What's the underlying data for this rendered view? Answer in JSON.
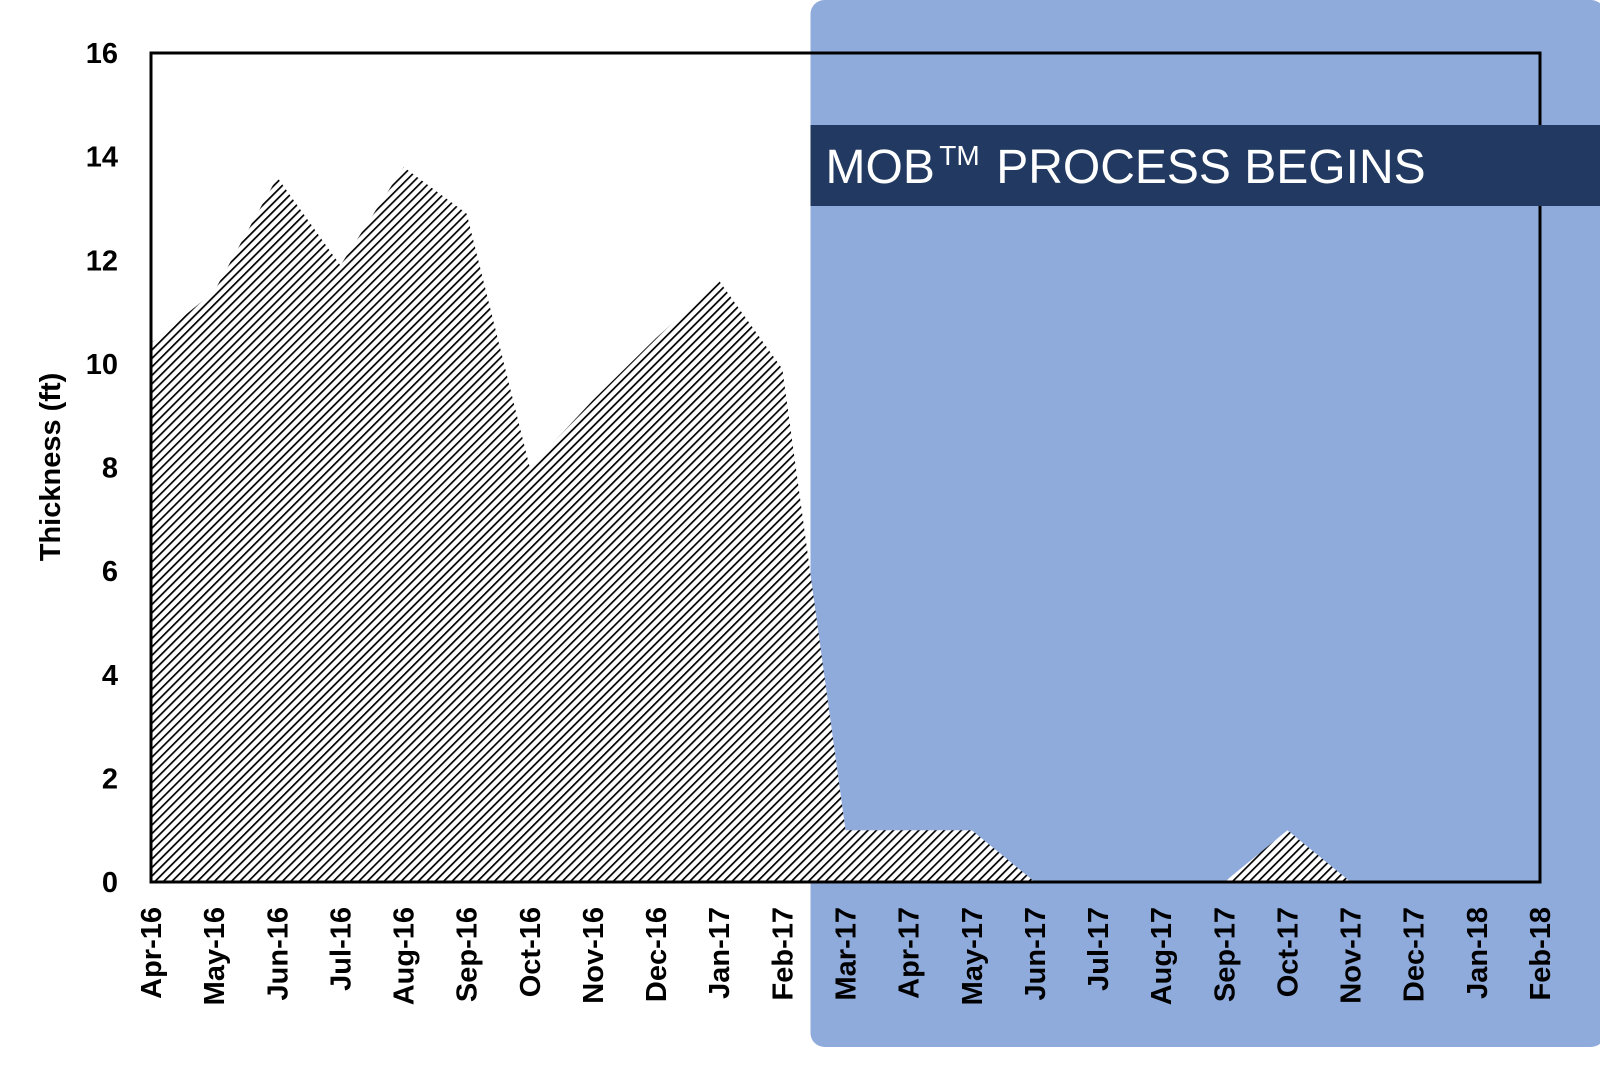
{
  "colors": {
    "region": "#8fabdc",
    "banner": "#223a62",
    "banner_text": "#ffffff",
    "area_stripe": "#000000",
    "frame": "#000000"
  },
  "annotation": {
    "text": "MOB",
    "superscript": "TM",
    "rest": "PROCESS BEGINS",
    "starts_at": "Mar-17"
  },
  "chart_data": {
    "type": "area",
    "ylabel": "Thickness (ft)",
    "xlabel": "",
    "ylim": [
      0,
      16
    ],
    "yticks": [
      0,
      2,
      4,
      6,
      8,
      10,
      12,
      14,
      16
    ],
    "grid": false,
    "fill": "diagonal-hatch",
    "categories": [
      "Apr-16",
      "May-16",
      "Jun-16",
      "Jul-16",
      "Aug-16",
      "Sep-16",
      "Oct-16",
      "Nov-16",
      "Dec-16",
      "Jan-17",
      "Feb-17",
      "Mar-17",
      "Apr-17",
      "May-17",
      "Jun-17",
      "Jul-17",
      "Aug-17",
      "Sep-17",
      "Oct-17",
      "Nov-17",
      "Dec-17",
      "Jan-18",
      "Feb-18"
    ],
    "series": [
      {
        "values": [
          10.4,
          11.4,
          13.6,
          11.9,
          13.8,
          12.9,
          8.0,
          9.3,
          10.5,
          11.6,
          9.9,
          1.0,
          1.0,
          1.0,
          0,
          0,
          0,
          0,
          1.0,
          0,
          0,
          0,
          0
        ]
      }
    ]
  }
}
